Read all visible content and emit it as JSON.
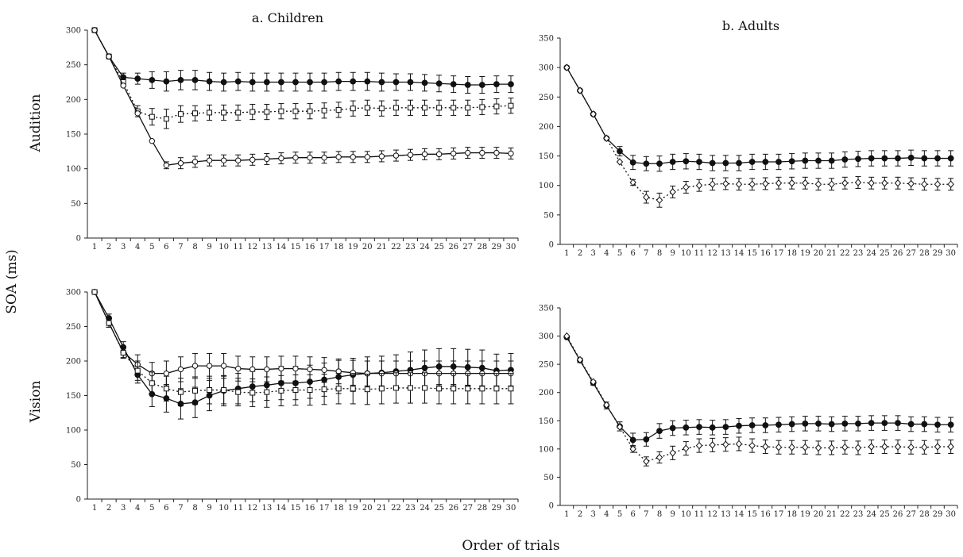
{
  "figure": {
    "col_titles": [
      "a. Children",
      "b. Adults"
    ],
    "row_labels": [
      "Audition",
      "Vision"
    ],
    "y_label": "SOA (ms)",
    "x_label": "Order of trials"
  },
  "chart_data": [
    {
      "type": "line",
      "id": "children-audition",
      "title": "a. Children",
      "row": "Audition",
      "xlabel": "Order of trials",
      "ylabel": "SOA (ms)",
      "ylim": [
        0,
        300
      ],
      "yticks": [
        0,
        50,
        100,
        150,
        200,
        250,
        300
      ],
      "x": [
        1,
        2,
        3,
        4,
        5,
        6,
        7,
        8,
        9,
        10,
        11,
        12,
        13,
        14,
        15,
        16,
        17,
        18,
        19,
        20,
        21,
        22,
        23,
        24,
        25,
        26,
        27,
        28,
        29,
        30
      ],
      "grid": false,
      "series": [
        {
          "marker": "filled-circle",
          "line": "solid",
          "values": [
            300,
            262,
            232,
            230,
            228,
            226,
            228,
            228,
            226,
            225,
            226,
            225,
            225,
            225,
            225,
            225,
            225,
            226,
            226,
            226,
            225,
            225,
            225,
            224,
            223,
            222,
            221,
            221,
            222,
            222
          ],
          "err": [
            0,
            0,
            6,
            8,
            12,
            14,
            14,
            14,
            13,
            13,
            13,
            13,
            13,
            13,
            13,
            13,
            13,
            13,
            13,
            13,
            13,
            12,
            12,
            12,
            12,
            12,
            12,
            12,
            12,
            12
          ]
        },
        {
          "marker": "open-square",
          "line": "dotted",
          "values": [
            300,
            262,
            225,
            183,
            175,
            172,
            179,
            180,
            181,
            181,
            181,
            182,
            182,
            183,
            183,
            183,
            184,
            185,
            187,
            188,
            187,
            188,
            188,
            188,
            188,
            188,
            188,
            189,
            190,
            191
          ],
          "err": [
            0,
            0,
            6,
            8,
            12,
            14,
            12,
            11,
            11,
            11,
            11,
            11,
            11,
            11,
            11,
            11,
            11,
            11,
            11,
            11,
            11,
            11,
            11,
            11,
            11,
            11,
            11,
            11,
            11,
            11
          ]
        },
        {
          "marker": "open-circle",
          "line": "solid",
          "values": [
            300,
            262,
            220,
            180,
            140,
            105,
            108,
            110,
            112,
            112,
            112,
            113,
            114,
            115,
            116,
            116,
            116,
            117,
            117,
            117,
            118,
            119,
            120,
            121,
            121,
            122,
            123,
            123,
            123,
            122
          ],
          "err": [
            0,
            0,
            0,
            0,
            0,
            5,
            8,
            8,
            8,
            8,
            8,
            8,
            8,
            8,
            8,
            8,
            8,
            8,
            8,
            8,
            8,
            8,
            8,
            8,
            8,
            8,
            8,
            8,
            8,
            8
          ]
        }
      ]
    },
    {
      "type": "line",
      "id": "adults-audition",
      "title": "b. Adults",
      "row": "Audition",
      "xlabel": "Order of trials",
      "ylabel": "SOA (ms)",
      "ylim": [
        0,
        350
      ],
      "yticks": [
        0,
        50,
        100,
        150,
        200,
        250,
        300,
        350
      ],
      "x": [
        1,
        2,
        3,
        4,
        5,
        6,
        7,
        8,
        9,
        10,
        11,
        12,
        13,
        14,
        15,
        16,
        17,
        18,
        19,
        20,
        21,
        22,
        23,
        24,
        25,
        26,
        27,
        28,
        29,
        30
      ],
      "grid": false,
      "series": [
        {
          "marker": "filled-circle",
          "line": "solid",
          "values": [
            300,
            261,
            221,
            180,
            158,
            139,
            137,
            137,
            140,
            141,
            140,
            138,
            138,
            138,
            140,
            140,
            140,
            141,
            142,
            142,
            142,
            144,
            145,
            146,
            146,
            146,
            147,
            146,
            146,
            146
          ],
          "err": [
            0,
            0,
            0,
            0,
            8,
            12,
            12,
            13,
            13,
            13,
            13,
            13,
            13,
            13,
            13,
            13,
            13,
            13,
            13,
            13,
            13,
            13,
            13,
            13,
            13,
            13,
            13,
            13,
            13,
            13
          ]
        },
        {
          "marker": "open-diamond",
          "line": "dotted",
          "values": [
            300,
            261,
            221,
            180,
            140,
            105,
            80,
            75,
            89,
            97,
            100,
            102,
            103,
            102,
            102,
            103,
            104,
            104,
            104,
            102,
            102,
            104,
            105,
            104,
            104,
            104,
            103,
            102,
            102,
            102
          ],
          "err": [
            0,
            0,
            0,
            0,
            0,
            5,
            10,
            12,
            10,
            10,
            10,
            10,
            10,
            10,
            10,
            10,
            10,
            10,
            10,
            10,
            10,
            10,
            10,
            10,
            10,
            10,
            10,
            10,
            10,
            10
          ]
        }
      ]
    },
    {
      "type": "line",
      "id": "children-vision",
      "title": "a. Children",
      "row": "Vision",
      "xlabel": "Order of trials",
      "ylabel": "SOA (ms)",
      "ylim": [
        0,
        300
      ],
      "yticks": [
        0,
        50,
        100,
        150,
        200,
        250,
        300
      ],
      "x": [
        1,
        2,
        3,
        4,
        5,
        6,
        7,
        8,
        9,
        10,
        11,
        12,
        13,
        14,
        15,
        16,
        17,
        18,
        19,
        20,
        21,
        22,
        23,
        24,
        25,
        26,
        27,
        28,
        29,
        30
      ],
      "grid": false,
      "series": [
        {
          "marker": "filled-circle",
          "line": "solid",
          "values": [
            300,
            262,
            220,
            180,
            152,
            146,
            138,
            140,
            150,
            157,
            160,
            163,
            165,
            168,
            168,
            170,
            173,
            177,
            180,
            182,
            183,
            185,
            187,
            190,
            192,
            192,
            191,
            190,
            186,
            187
          ],
          "err": [
            0,
            6,
            8,
            12,
            18,
            20,
            22,
            22,
            22,
            22,
            22,
            22,
            22,
            24,
            24,
            24,
            24,
            24,
            24,
            24,
            24,
            24,
            26,
            26,
            26,
            26,
            26,
            26,
            24,
            24
          ]
        },
        {
          "marker": "open-circle",
          "line": "solid",
          "values": [
            300,
            255,
            213,
            195,
            182,
            182,
            188,
            193,
            193,
            193,
            189,
            188,
            188,
            189,
            189,
            188,
            187,
            185,
            183,
            182,
            182,
            182,
            182,
            182,
            182,
            182,
            182,
            182,
            182,
            182
          ],
          "err": [
            0,
            6,
            8,
            14,
            16,
            18,
            18,
            18,
            18,
            18,
            18,
            18,
            18,
            18,
            18,
            18,
            18,
            18,
            18,
            18,
            18,
            18,
            18,
            18,
            18,
            18,
            18,
            18,
            18,
            18
          ]
        },
        {
          "marker": "open-square",
          "line": "dotted",
          "values": [
            300,
            255,
            212,
            186,
            168,
            160,
            155,
            157,
            158,
            158,
            155,
            154,
            155,
            157,
            158,
            158,
            159,
            160,
            160,
            159,
            160,
            161,
            161,
            161,
            160,
            160,
            160,
            160,
            160,
            160
          ],
          "err": [
            0,
            6,
            8,
            14,
            16,
            18,
            20,
            20,
            20,
            20,
            20,
            20,
            22,
            22,
            22,
            22,
            22,
            22,
            22,
            22,
            22,
            22,
            22,
            22,
            22,
            22,
            22,
            22,
            22,
            22
          ]
        }
      ]
    },
    {
      "type": "line",
      "id": "adults-vision",
      "title": "b. Adults",
      "row": "Vision",
      "xlabel": "Order of trials",
      "ylabel": "SOA (ms)",
      "ylim": [
        0,
        350
      ],
      "yticks": [
        0,
        50,
        100,
        150,
        200,
        250,
        300,
        350
      ],
      "x": [
        1,
        2,
        3,
        4,
        5,
        6,
        7,
        8,
        9,
        10,
        11,
        12,
        13,
        14,
        15,
        16,
        17,
        18,
        19,
        20,
        21,
        22,
        23,
        24,
        25,
        26,
        27,
        28,
        29,
        30
      ],
      "grid": false,
      "series": [
        {
          "marker": "filled-circle",
          "line": "solid",
          "values": [
            298,
            257,
            217,
            177,
            140,
            116,
            117,
            132,
            137,
            138,
            139,
            138,
            139,
            141,
            142,
            142,
            143,
            144,
            145,
            145,
            144,
            145,
            145,
            146,
            146,
            146,
            144,
            144,
            143,
            143
          ],
          "err": [
            0,
            4,
            4,
            6,
            8,
            12,
            12,
            13,
            13,
            13,
            13,
            13,
            13,
            13,
            13,
            13,
            13,
            13,
            13,
            13,
            13,
            13,
            13,
            13,
            13,
            13,
            13,
            13,
            13,
            13
          ]
        },
        {
          "marker": "open-diamond",
          "line": "dotted",
          "values": [
            300,
            258,
            219,
            178,
            139,
            100,
            78,
            85,
            93,
            101,
            106,
            107,
            108,
            109,
            106,
            104,
            103,
            103,
            103,
            102,
            102,
            103,
            102,
            104,
            104,
            104,
            103,
            103,
            104,
            104
          ],
          "err": [
            0,
            0,
            0,
            0,
            0,
            6,
            8,
            10,
            12,
            12,
            12,
            12,
            12,
            12,
            12,
            12,
            12,
            12,
            12,
            12,
            12,
            12,
            12,
            12,
            12,
            12,
            12,
            12,
            12,
            12
          ]
        }
      ]
    }
  ]
}
